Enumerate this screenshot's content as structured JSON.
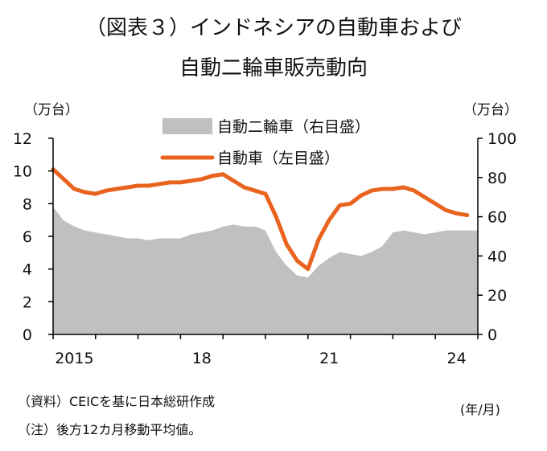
{
  "title_line1": "（図表３）インドネシアの自動車および",
  "title_line2": "自動二輪車販売動向",
  "unit_left": "（万台）",
  "unit_right": "（万台）",
  "x_unit": "(年/月)",
  "notes": {
    "source": "（資料）CEICを基に日本総研作成",
    "note": "（注）後方12カ月移動平均値。"
  },
  "colors": {
    "motorcycle": "#c0c0c0",
    "car": "#e8641e"
  },
  "chart_data": {
    "type": "area",
    "x": [
      "2015",
      "2015.25",
      "2015.5",
      "2015.75",
      "2016",
      "2016.25",
      "2016.5",
      "2016.75",
      "2017",
      "2017.25",
      "2017.5",
      "2017.75",
      "2018",
      "2018.25",
      "2018.5",
      "2018.75",
      "2019",
      "2019.25",
      "2019.5",
      "2019.75",
      "2020",
      "2020.25",
      "2020.5",
      "2020.75",
      "2021",
      "2021.25",
      "2021.5",
      "2021.75",
      "2022",
      "2022.25",
      "2022.5",
      "2022.75",
      "2023",
      "2023.25",
      "2023.5",
      "2023.75",
      "2024",
      "2024.25",
      "2024.5",
      "2024.75"
    ],
    "x_ticks": [
      "2015",
      "18",
      "21",
      "24"
    ],
    "y_left_ticks": [
      "0",
      "2",
      "4",
      "6",
      "8",
      "10",
      "12"
    ],
    "y_right_ticks": [
      "0",
      "20",
      "40",
      "60",
      "80",
      "100"
    ],
    "y_left_range": [
      0,
      12
    ],
    "y_right_range": [
      0,
      100
    ],
    "legend_position": "top-center",
    "series": [
      {
        "name": "自動二輪車（右目盛）",
        "type": "area",
        "axis": "right",
        "values": [
          65,
          58,
          55,
          53,
          52,
          51,
          50,
          49,
          49,
          48,
          49,
          49,
          49,
          51,
          52,
          53,
          55,
          56,
          55,
          55,
          53,
          42,
          35,
          30,
          29,
          35,
          39,
          42,
          41,
          40,
          42,
          45,
          52,
          53,
          52,
          51,
          52,
          53,
          53,
          53
        ]
      },
      {
        "name": "自動車（左目盛）",
        "type": "line",
        "axis": "left",
        "values": [
          10.1,
          9.5,
          8.9,
          8.7,
          8.6,
          8.8,
          8.9,
          9.0,
          9.1,
          9.1,
          9.2,
          9.3,
          9.3,
          9.4,
          9.5,
          9.7,
          9.8,
          9.4,
          9.0,
          8.8,
          8.6,
          7.2,
          5.5,
          4.5,
          4.0,
          5.8,
          7.0,
          7.9,
          8.0,
          8.5,
          8.8,
          8.9,
          8.9,
          9.0,
          8.8,
          8.4,
          8.0,
          7.6,
          7.4,
          7.3
        ]
      }
    ]
  }
}
